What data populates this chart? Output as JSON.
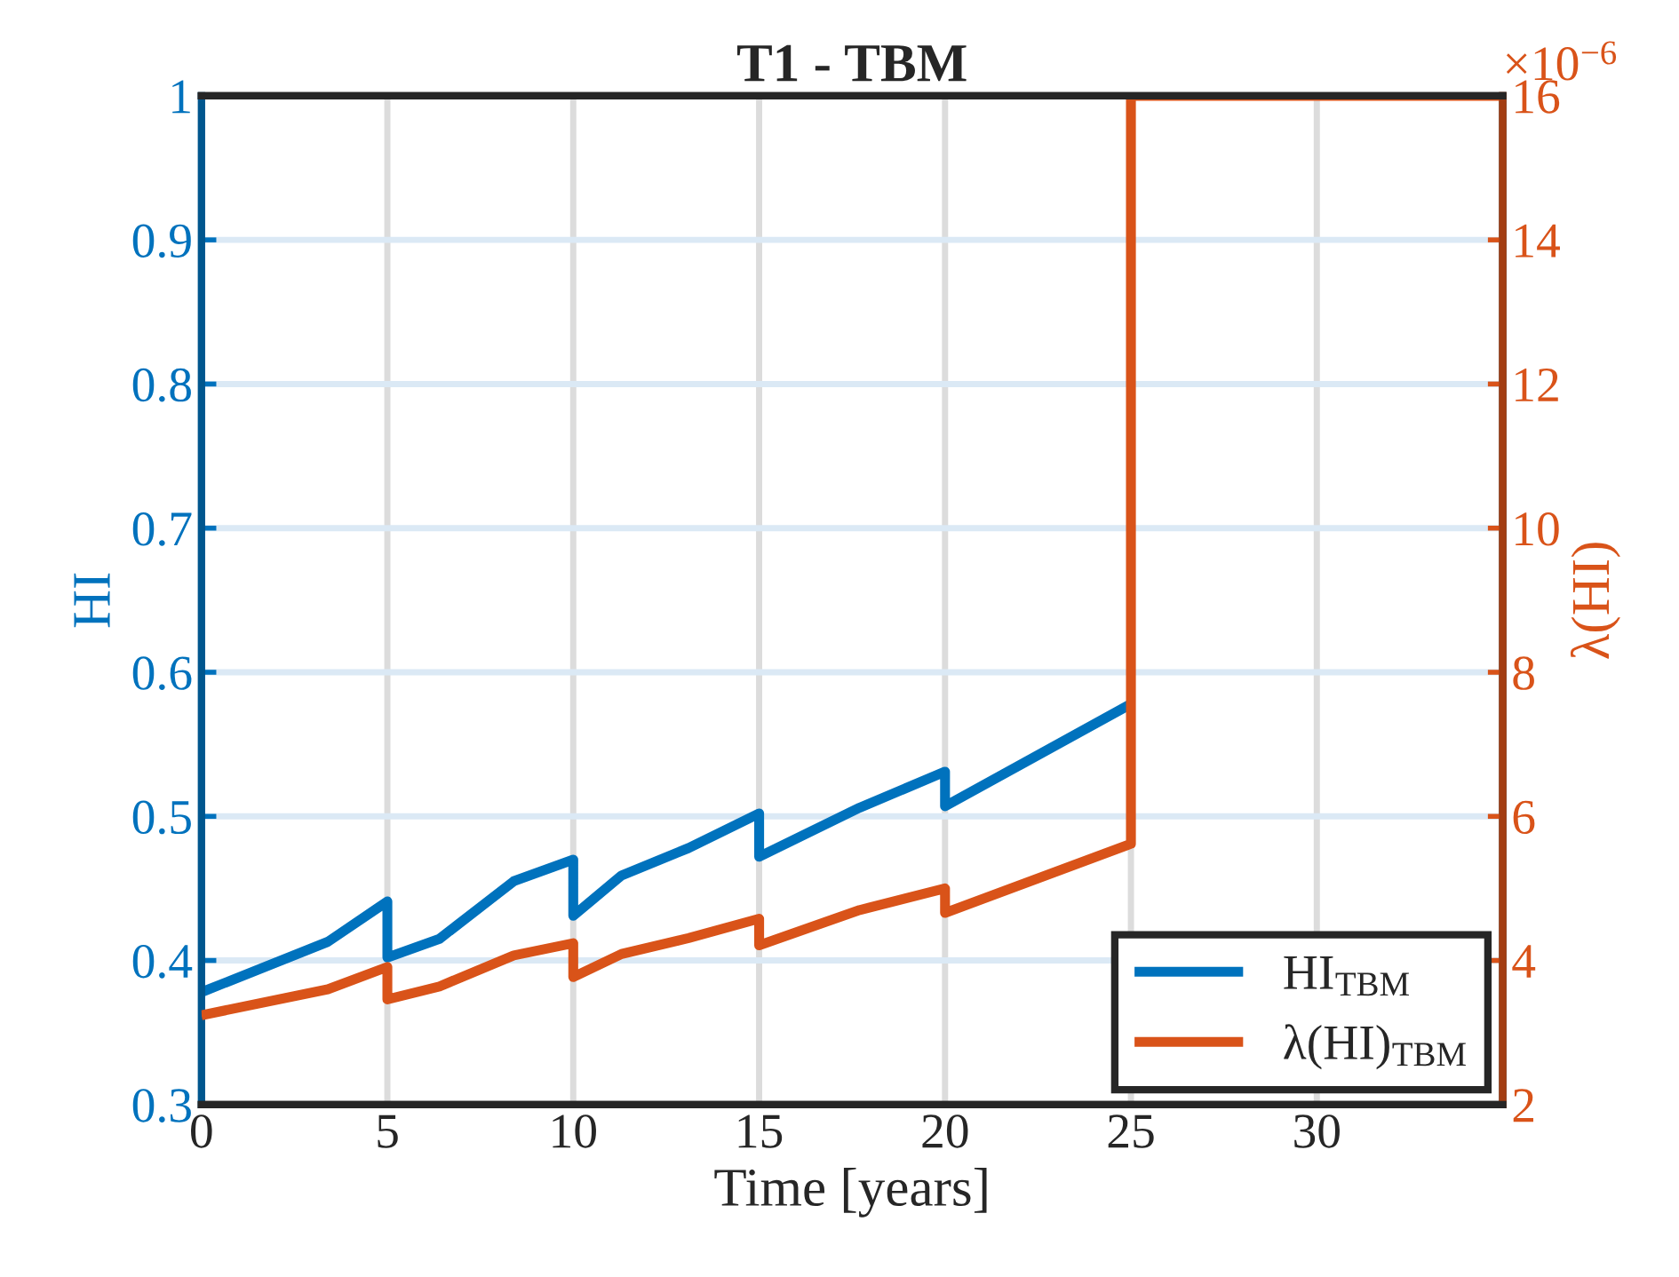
{
  "chart_data": {
    "type": "line",
    "title": "T1 - TBM",
    "xlabel": "Time [years]",
    "ylabel": "HI",
    "y2label": "λ(HI)",
    "xlim": [
      0,
      35
    ],
    "xticks": [
      0,
      5,
      10,
      15,
      20,
      25,
      30
    ],
    "ylim": [
      0.3,
      1
    ],
    "yticks": [
      0.3,
      0.4,
      0.5,
      0.6,
      0.7,
      0.8,
      0.9,
      1
    ],
    "y2lim": [
      2,
      16
    ],
    "y2ticks": [
      2,
      4,
      6,
      8,
      10,
      12,
      14,
      16
    ],
    "annotations": [
      "×10$^{−6}$"
    ],
    "grid": true,
    "legend": "bottom right",
    "marker": "none",
    "line_style": "solid",
    "series": [
      {
        "name": "HI$_{TBM}$",
        "color": "#0072bd",
        "x": [
          0,
          3.4,
          5,
          5,
          6.4,
          8.4,
          10,
          10,
          11.3,
          13.1,
          15,
          15,
          17.7,
          20,
          20,
          25
        ],
        "values": [
          0.378,
          0.413,
          0.441,
          0.402,
          0.415,
          0.455,
          0.47,
          0.431,
          0.459,
          0.478,
          0.502,
          0.472,
          0.506,
          0.531,
          0.507,
          0.578
        ]
      },
      {
        "name": "λ(HI)$_{TBM}$",
        "color": "#d95319",
        "axis": "y2",
        "x": [
          0,
          3.4,
          5,
          5,
          6.4,
          8.4,
          10,
          10,
          11.3,
          13.1,
          15,
          15,
          17.7,
          20,
          20,
          25,
          25,
          35
        ],
        "values": [
          3.24,
          3.6,
          3.91,
          3.46,
          3.64,
          4.07,
          4.24,
          3.77,
          4.09,
          4.31,
          4.58,
          4.21,
          4.7,
          5.0,
          4.66,
          5.62,
          16,
          16
        ]
      }
    ]
  }
}
